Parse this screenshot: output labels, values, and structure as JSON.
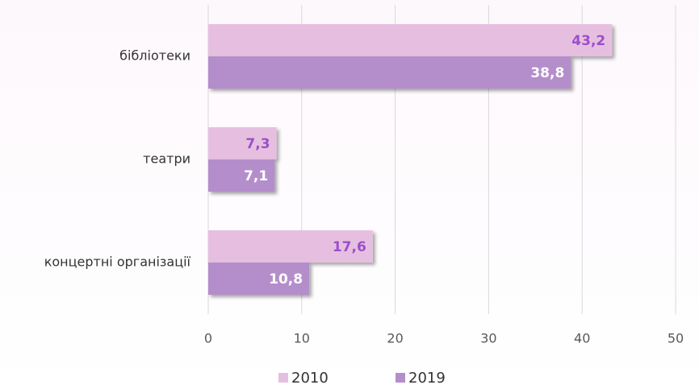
{
  "chart_data": {
    "type": "bar",
    "orientation": "horizontal",
    "categories": [
      "бібліотеки",
      "театри",
      "концертні організації"
    ],
    "series": [
      {
        "name": "2010",
        "color": "#e6bfe0",
        "values": [
          43.2,
          7.3,
          17.6
        ],
        "value_labels": [
          "43,2",
          "7,3",
          "17,6"
        ]
      },
      {
        "name": "2019",
        "color": "#b48ecb",
        "values": [
          38.8,
          7.1,
          10.8
        ],
        "value_labels": [
          "38,8",
          "7,1",
          "10,8"
        ]
      }
    ],
    "xlim": [
      0,
      50
    ],
    "xticks": [
      0,
      10,
      20,
      30,
      40,
      50
    ],
    "grid": true,
    "legend": "bottom"
  }
}
